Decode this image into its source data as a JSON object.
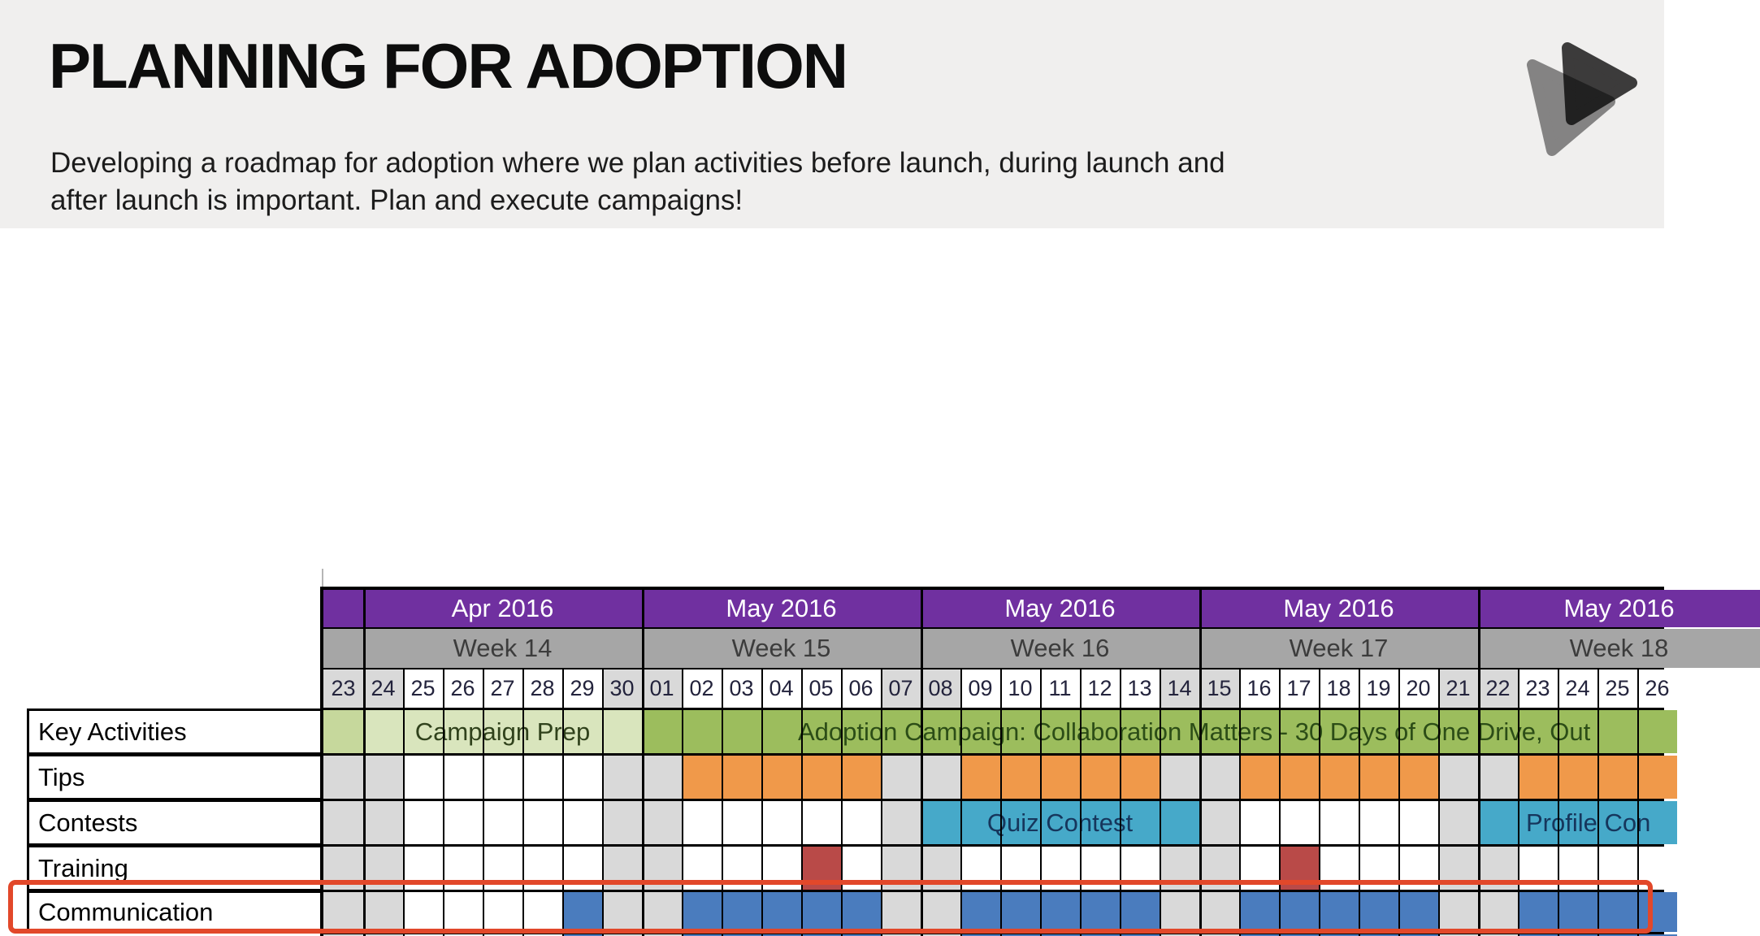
{
  "slide": {
    "title": "PLANNING FOR ADOPTION",
    "subtitle_line1": "Developing a roadmap for adoption where we plan activities before launch, during launch and",
    "subtitle_line2": "after launch is important. Plan and execute campaigns!",
    "band_color": "#f0efee"
  },
  "logo": {
    "icon": "play-triangles-icon",
    "front_color": "#3f3f3f",
    "back_color": "#8c8c8c"
  },
  "gantt": {
    "months": [
      "",
      "Apr 2016",
      "May 2016",
      "May 2016",
      "May 2016",
      "May 2016"
    ],
    "weeks": [
      "",
      "Week 14",
      "Week 15",
      "Week 16",
      "Week 17",
      "Week 18"
    ],
    "days": [
      "23",
      "24",
      "25",
      "26",
      "27",
      "28",
      "29",
      "30",
      "01",
      "02",
      "03",
      "04",
      "05",
      "06",
      "07",
      "08",
      "09",
      "10",
      "11",
      "12",
      "13",
      "14",
      "15",
      "16",
      "17",
      "18",
      "19",
      "20",
      "21",
      "22",
      "23",
      "24",
      "25",
      "26"
    ],
    "weekend_cols": [
      0,
      1,
      7,
      8,
      14,
      15,
      21,
      22,
      28,
      29
    ],
    "row_labels": [
      "Key Activities",
      "Tips",
      "Contests",
      "Training",
      "Communication"
    ],
    "rows": [
      {
        "name": "key-activities",
        "segments": [
          {
            "from": 0,
            "to": 0,
            "color": "green_mid"
          },
          {
            "from": 1,
            "to": 7,
            "color": "green_light",
            "label": "Campaign Prep"
          },
          {
            "from": 8,
            "to": 33,
            "color": "olive",
            "label": "Adoption Campaign: Collaboration Matters - 30 Days of One Drive, Out",
            "label_left": 982,
            "label_color": "#2c4d17"
          }
        ]
      },
      {
        "name": "tips",
        "segments": [
          {
            "from": 9,
            "to": 13,
            "color": "orange"
          },
          {
            "from": 16,
            "to": 20,
            "color": "orange"
          },
          {
            "from": 23,
            "to": 27,
            "color": "orange"
          },
          {
            "from": 30,
            "to": 33,
            "color": "orange"
          }
        ]
      },
      {
        "name": "contests",
        "segments": [
          {
            "from": 15,
            "to": 21,
            "color": "teal",
            "label": "Quiz Contest",
            "label_color": "#16365c"
          },
          {
            "from": 29,
            "to": 33,
            "color": "teal",
            "label": "Profile Con",
            "label_left": 1878,
            "label_color": "#16365c"
          }
        ]
      },
      {
        "name": "training",
        "segments": [
          {
            "from": 12,
            "to": 12,
            "color": "dark_red"
          },
          {
            "from": 24,
            "to": 24,
            "color": "dark_red"
          }
        ]
      },
      {
        "name": "communication",
        "segments": [
          {
            "from": 6,
            "to": 6,
            "color": "blue"
          },
          {
            "from": 9,
            "to": 13,
            "color": "blue"
          },
          {
            "from": 16,
            "to": 20,
            "color": "blue"
          },
          {
            "from": 23,
            "to": 27,
            "color": "blue"
          },
          {
            "from": 30,
            "to": 33,
            "color": "blue"
          }
        ]
      }
    ],
    "colors": {
      "purple": "#7030a0",
      "week_grey": "#a6a6a6",
      "weekend": "#d9d9d9",
      "weekday": "#ffffff",
      "green_mid": "#c6d89c",
      "green_light": "#d9e5bd",
      "olive": "#9cbd5d",
      "orange": "#f0994a",
      "teal": "#46a9c9",
      "blue": "#4a7cbe",
      "dark_red": "#b94a48",
      "annotation_red": "#e2482a",
      "month_text": "#ffffff",
      "week_text": "#3c3c3c",
      "day_text": "#23233c",
      "prep_text": "#30421c"
    }
  }
}
